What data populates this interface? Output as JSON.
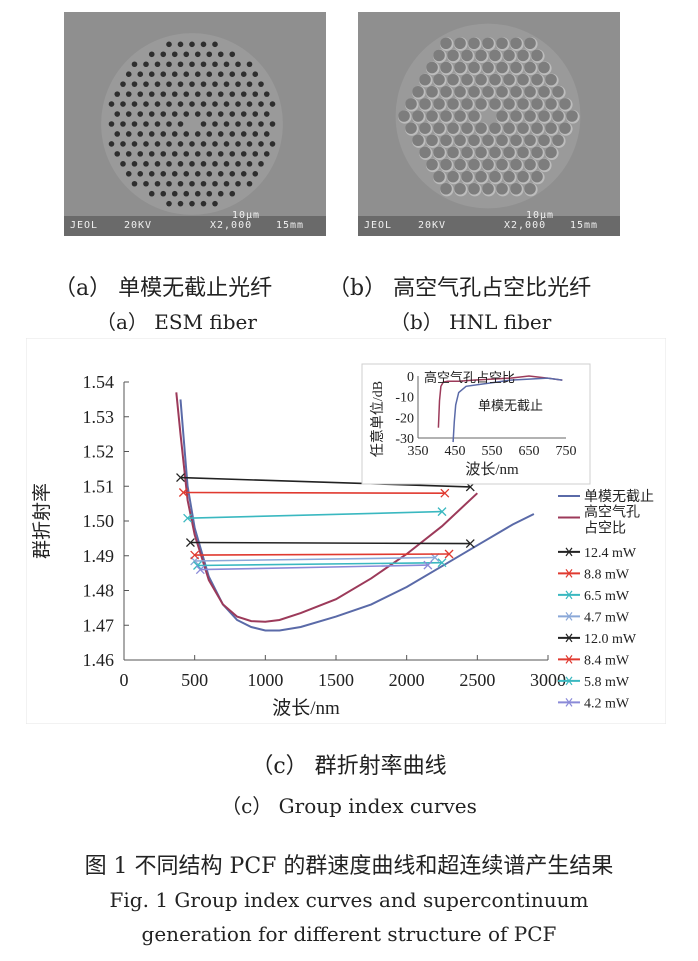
{
  "panel_a": {
    "sem_label": "JEOL",
    "sem_voltage": "20KV",
    "sem_mag": "X2,000",
    "sem_wd": "15mm",
    "sem_scale": "10μm",
    "caption_cn": "（a）  单模无截止光纤",
    "caption_en": "（a）  ESM fiber"
  },
  "panel_b": {
    "sem_label": "JEOL",
    "sem_voltage": "20KV",
    "sem_mag": "X2,000",
    "sem_wd": "15mm",
    "sem_scale": "10μm",
    "caption_cn": "（b）  高空气孔占空比光纤",
    "caption_en": "（b）  HNL fiber"
  },
  "panel_c": {
    "caption_cn": "（c）  群折射率曲线",
    "caption_en": "（c）  Group index curves"
  },
  "figure": {
    "title_cn": "图 1    不同结构 PCF 的群速度曲线和超连续谱产生结果",
    "title_en_line1": "Fig. 1    Group index curves and supercontinuum",
    "title_en_line2": "generation for different structure of PCF"
  },
  "chart_data": [
    {
      "type": "line",
      "xlabel": "波长/nm",
      "ylabel": "群折射率",
      "xlim": [
        0,
        3000
      ],
      "ylim": [
        1.46,
        1.54
      ],
      "xticks": [
        0,
        500,
        1000,
        1500,
        2000,
        2500,
        3000
      ],
      "yticks": [
        1.46,
        1.47,
        1.48,
        1.49,
        1.5,
        1.51,
        1.52,
        1.53,
        1.54
      ],
      "legend_position": "right",
      "series": [
        {
          "name": "单模无截止",
          "color": "#5a6aa8",
          "x": [
            400,
            450,
            500,
            600,
            700,
            800,
            900,
            1000,
            1100,
            1250,
            1500,
            1750,
            2000,
            2250,
            2500,
            2750,
            2900
          ],
          "y": [
            1.535,
            1.51,
            1.498,
            1.484,
            1.476,
            1.4715,
            1.4695,
            1.4685,
            1.4685,
            1.4695,
            1.4725,
            1.476,
            1.481,
            1.487,
            1.493,
            1.499,
            1.502
          ]
        },
        {
          "name": "高空气孔\n占空比",
          "color": "#9c3a5a",
          "x": [
            370,
            400,
            450,
            500,
            600,
            700,
            800,
            900,
            1000,
            1100,
            1250,
            1500,
            1750,
            2000,
            2250,
            2500
          ],
          "y": [
            1.537,
            1.525,
            1.506,
            1.496,
            1.483,
            1.476,
            1.4725,
            1.4712,
            1.471,
            1.4715,
            1.4735,
            1.4775,
            1.4835,
            1.4905,
            1.4985,
            1.508
          ]
        },
        {
          "name": "12.4 mW",
          "color": "#222222",
          "x": [
            400,
            2450
          ],
          "y": [
            1.5125,
            1.5098
          ]
        },
        {
          "name": "8.8 mW",
          "color": "#e03a30",
          "x": [
            420,
            2270
          ],
          "y": [
            1.5082,
            1.508
          ]
        },
        {
          "name": "6.5 mW",
          "color": "#3ab8c0",
          "x": [
            450,
            2250
          ],
          "y": [
            1.5008,
            1.5027
          ]
        },
        {
          "name": "4.7 mW",
          "color": "#8aa8d8",
          "x": [
            500,
            2200
          ],
          "y": [
            1.4885,
            1.4895
          ]
        },
        {
          "name": "12.0 mW",
          "color": "#222222",
          "x": [
            470,
            2450
          ],
          "y": [
            1.4938,
            1.4935
          ]
        },
        {
          "name": "8.4 mW",
          "color": "#e03a30",
          "x": [
            500,
            2300
          ],
          "y": [
            1.4902,
            1.4905
          ]
        },
        {
          "name": "5.8 mW",
          "color": "#3ab8c0",
          "x": [
            520,
            2250
          ],
          "y": [
            1.4872,
            1.488
          ]
        },
        {
          "name": "4.2 mW",
          "color": "#8a8ad8",
          "x": [
            540,
            2150
          ],
          "y": [
            1.486,
            1.4873
          ]
        }
      ]
    },
    {
      "type": "line",
      "xlabel": "波长/nm",
      "ylabel": "任意单位/dB",
      "xlim": [
        350,
        750
      ],
      "ylim": [
        -30,
        0
      ],
      "xticks": [
        350,
        450,
        550,
        650,
        750
      ],
      "yticks": [
        0,
        -10,
        -20,
        -30
      ],
      "annotations": [
        "高空气孔占空比",
        "单模无截止"
      ],
      "series": [
        {
          "name": "高空气孔占空比",
          "color": "#9c3a5a",
          "x": [
            405,
            408,
            412,
            418,
            430,
            460,
            500,
            550,
            600,
            650,
            700,
            740
          ],
          "y": [
            -25,
            -12,
            -5,
            -3,
            -2.5,
            -2.5,
            -2,
            -1.5,
            -1,
            0,
            -1,
            -2
          ]
        },
        {
          "name": "单模无截止",
          "color": "#5a6aa8",
          "x": [
            445,
            448,
            452,
            460,
            480,
            520,
            560,
            600,
            650,
            700,
            740
          ],
          "y": [
            -32,
            -22,
            -14,
            -8,
            -5,
            -4,
            -3,
            -2,
            -1.5,
            -1,
            -2
          ]
        }
      ]
    }
  ]
}
